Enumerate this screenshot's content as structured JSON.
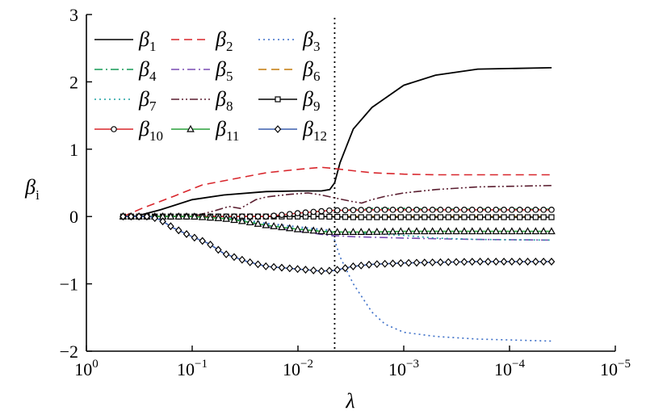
{
  "chart_data": {
    "type": "line",
    "title": "",
    "xlabel": "λ",
    "ylabel": "β",
    "ylabel_subscript": "i",
    "x_scale": "log-reversed",
    "xlim": [
      1,
      1e-05
    ],
    "ylim": [
      -2,
      3
    ],
    "x_ticks": [
      {
        "value": 1,
        "base": "10",
        "exp": "0"
      },
      {
        "value": 0.1,
        "base": "10",
        "exp": "−1"
      },
      {
        "value": 0.01,
        "base": "10",
        "exp": "−2"
      },
      {
        "value": 0.001,
        "base": "10",
        "exp": "−3"
      },
      {
        "value": 0.0001,
        "base": "10",
        "exp": "−4"
      },
      {
        "value": 1e-05,
        "base": "10",
        "exp": "−5"
      }
    ],
    "y_ticks": [
      {
        "value": 3,
        "label": "3"
      },
      {
        "value": 2,
        "label": "2"
      },
      {
        "value": 1,
        "label": "1"
      },
      {
        "value": 0,
        "label": "0"
      },
      {
        "value": -1,
        "label": "−1"
      },
      {
        "value": -2,
        "label": "−2"
      }
    ],
    "vline": {
      "x": 0.0045,
      "style": "dotted",
      "color": "#000000"
    },
    "grid": false,
    "legend_position": "top-left",
    "series": [
      {
        "name": "β",
        "sub": "1",
        "color": "#000000",
        "dash": "solid",
        "marker": "none",
        "points": [
          [
            0.45,
            0
          ],
          [
            0.33,
            0.01
          ],
          [
            0.2,
            0.1
          ],
          [
            0.1,
            0.25
          ],
          [
            0.05,
            0.32
          ],
          [
            0.02,
            0.37
          ],
          [
            0.01,
            0.38
          ],
          [
            0.006,
            0.38
          ],
          [
            0.005,
            0.4
          ],
          [
            0.0045,
            0.5
          ],
          [
            0.004,
            0.8
          ],
          [
            0.003,
            1.3
          ],
          [
            0.002,
            1.62
          ],
          [
            0.001,
            1.95
          ],
          [
            0.0005,
            2.1
          ],
          [
            0.0002,
            2.19
          ],
          [
            4e-05,
            2.21
          ]
        ]
      },
      {
        "name": "β",
        "sub": "2",
        "color": "#d8262c",
        "dash": "dashed",
        "marker": "none",
        "points": [
          [
            0.45,
            0
          ],
          [
            0.3,
            0.12
          ],
          [
            0.15,
            0.3
          ],
          [
            0.08,
            0.47
          ],
          [
            0.04,
            0.56
          ],
          [
            0.02,
            0.65
          ],
          [
            0.01,
            0.7
          ],
          [
            0.006,
            0.73
          ],
          [
            0.005,
            0.72
          ],
          [
            0.003,
            0.68
          ],
          [
            0.002,
            0.65
          ],
          [
            0.001,
            0.63
          ],
          [
            0.0005,
            0.62
          ],
          [
            0.0002,
            0.62
          ],
          [
            4e-05,
            0.62
          ]
        ]
      },
      {
        "name": "β",
        "sub": "3",
        "color": "#3c6fc8",
        "dash": "dotted",
        "marker": "none",
        "points": [
          [
            0.45,
            0
          ],
          [
            0.05,
            0
          ],
          [
            0.02,
            -0.1
          ],
          [
            0.008,
            -0.17
          ],
          [
            0.005,
            -0.2
          ],
          [
            0.0045,
            -0.35
          ],
          [
            0.004,
            -0.6
          ],
          [
            0.003,
            -1.0
          ],
          [
            0.002,
            -1.42
          ],
          [
            0.0015,
            -1.6
          ],
          [
            0.001,
            -1.72
          ],
          [
            0.0005,
            -1.78
          ],
          [
            0.0002,
            -1.82
          ],
          [
            4e-05,
            -1.85
          ]
        ]
      },
      {
        "name": "β",
        "sub": "4",
        "color": "#159a56",
        "dash": "dashdot",
        "marker": "none",
        "points": [
          [
            0.45,
            0
          ],
          [
            0.02,
            0
          ],
          [
            0.01,
            0.05
          ],
          [
            0.005,
            0.09
          ],
          [
            0.002,
            0.12
          ],
          [
            0.001,
            0.12
          ],
          [
            0.0005,
            0.11
          ],
          [
            4e-05,
            0.11
          ]
        ]
      },
      {
        "name": "β",
        "sub": "5",
        "color": "#7a4bb3",
        "dash": "dashdot",
        "marker": "none",
        "points": [
          [
            0.45,
            0
          ],
          [
            0.05,
            0
          ],
          [
            0.02,
            -0.15
          ],
          [
            0.01,
            -0.22
          ],
          [
            0.005,
            -0.28
          ],
          [
            0.003,
            -0.3
          ],
          [
            0.001,
            -0.32
          ],
          [
            0.0005,
            -0.33
          ],
          [
            0.0002,
            -0.34
          ],
          [
            4e-05,
            -0.35
          ]
        ]
      },
      {
        "name": "β",
        "sub": "6",
        "color": "#c37a0a",
        "dash": "dashed",
        "marker": "none",
        "points": [
          [
            0.45,
            0
          ],
          [
            4e-05,
            0
          ]
        ]
      },
      {
        "name": "β",
        "sub": "7",
        "color": "#1aa0a0",
        "dash": "dotted",
        "marker": "none",
        "points": [
          [
            0.45,
            0
          ],
          [
            0.05,
            0
          ],
          [
            0.02,
            -0.12
          ],
          [
            0.01,
            -0.18
          ],
          [
            0.005,
            -0.22
          ],
          [
            0.003,
            -0.24
          ],
          [
            0.001,
            -0.28
          ],
          [
            0.0005,
            -0.32
          ],
          [
            0.0002,
            -0.34
          ],
          [
            4e-05,
            -0.35
          ]
        ]
      },
      {
        "name": "β",
        "sub": "8",
        "color": "#5a1e30",
        "dash": "dashdotdot",
        "marker": "none",
        "points": [
          [
            0.45,
            0
          ],
          [
            0.1,
            0
          ],
          [
            0.06,
            0.09
          ],
          [
            0.045,
            0.15
          ],
          [
            0.035,
            0.12
          ],
          [
            0.03,
            0.18
          ],
          [
            0.025,
            0.25
          ],
          [
            0.02,
            0.29
          ],
          [
            0.012,
            0.33
          ],
          [
            0.008,
            0.35
          ],
          [
            0.006,
            0.32
          ],
          [
            0.004,
            0.26
          ],
          [
            0.003,
            0.22
          ],
          [
            0.0025,
            0.2
          ],
          [
            0.002,
            0.25
          ],
          [
            0.0015,
            0.3
          ],
          [
            0.001,
            0.35
          ],
          [
            0.0005,
            0.4
          ],
          [
            0.0002,
            0.44
          ],
          [
            4e-05,
            0.46
          ]
        ]
      },
      {
        "name": "β",
        "sub": "9",
        "color": "#000000",
        "dash": "solid",
        "marker": "square",
        "points": [
          [
            0.45,
            0
          ],
          [
            0.05,
            0
          ],
          [
            0.006,
            0
          ],
          [
            0.003,
            -0.01
          ],
          [
            0.001,
            -0.01
          ],
          [
            4e-05,
            -0.01
          ]
        ]
      },
      {
        "name": "β",
        "sub": "10",
        "color": "#d8262c",
        "dash": "solid",
        "marker": "circle",
        "points": [
          [
            0.45,
            0
          ],
          [
            0.02,
            0
          ],
          [
            0.01,
            0.05
          ],
          [
            0.005,
            0.09
          ],
          [
            0.002,
            0.1
          ],
          [
            0.001,
            0.1
          ],
          [
            0.0005,
            0.1
          ],
          [
            4e-05,
            0.1
          ]
        ]
      },
      {
        "name": "β",
        "sub": "11",
        "color": "#2aa03c",
        "dash": "solid",
        "marker": "triangle",
        "points": [
          [
            0.45,
            0
          ],
          [
            0.1,
            0
          ],
          [
            0.05,
            -0.03
          ],
          [
            0.03,
            -0.08
          ],
          [
            0.02,
            -0.13
          ],
          [
            0.01,
            -0.19
          ],
          [
            0.005,
            -0.23
          ],
          [
            0.003,
            -0.23
          ],
          [
            0.002,
            -0.23
          ],
          [
            0.001,
            -0.22
          ],
          [
            0.0005,
            -0.22
          ],
          [
            4e-05,
            -0.22
          ]
        ]
      },
      {
        "name": "β",
        "sub": "12",
        "color": "#3c5fae",
        "dash": "solid",
        "marker": "diamond",
        "points": [
          [
            0.45,
            0
          ],
          [
            0.33,
            0
          ],
          [
            0.25,
            0
          ],
          [
            0.2,
            -0.05
          ],
          [
            0.15,
            -0.17
          ],
          [
            0.1,
            -0.3
          ],
          [
            0.07,
            -0.4
          ],
          [
            0.05,
            -0.55
          ],
          [
            0.03,
            -0.67
          ],
          [
            0.02,
            -0.74
          ],
          [
            0.01,
            -0.78
          ],
          [
            0.006,
            -0.81
          ],
          [
            0.0045,
            -0.8
          ],
          [
            0.003,
            -0.74
          ],
          [
            0.002,
            -0.71
          ],
          [
            0.001,
            -0.69
          ],
          [
            0.0005,
            -0.68
          ],
          [
            0.0002,
            -0.67
          ],
          [
            4e-05,
            -0.67
          ]
        ]
      }
    ]
  }
}
